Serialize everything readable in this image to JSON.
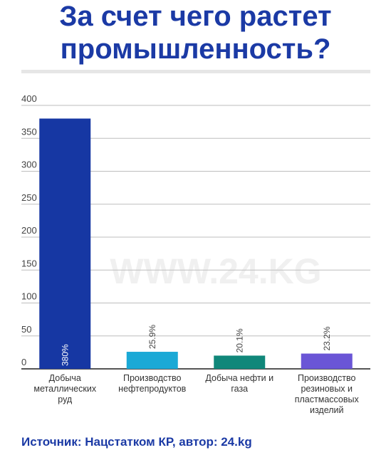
{
  "title": {
    "line1": "За счет чего растет",
    "line2": "промышленность?"
  },
  "watermark": "WWW.24.KG",
  "source": "Источник: Нацстатком КР, автор: 24.kg",
  "chart_data": {
    "type": "bar",
    "title": "За счет чего растет промышленность?",
    "categories": [
      [
        "Добыча",
        "металлических",
        "руд"
      ],
      [
        "Производство",
        "нефтепродуктов"
      ],
      [
        "Добыча нефти и",
        "газа"
      ],
      [
        "Производство",
        "резиновых и",
        "пластмассовых",
        "изделий"
      ]
    ],
    "values": [
      380,
      25.9,
      20.1,
      23.2
    ],
    "labels": [
      "380%",
      "25.9%",
      "20.1%",
      "23.2%"
    ],
    "colors": [
      "#1637a3",
      "#1aa9d6",
      "#10877a",
      "#6a55d6"
    ],
    "yticks": [
      0,
      50,
      100,
      150,
      200,
      250,
      300,
      350,
      400
    ],
    "ylim": [
      0,
      400
    ],
    "grid": true,
    "xlabel": "",
    "ylabel": ""
  }
}
